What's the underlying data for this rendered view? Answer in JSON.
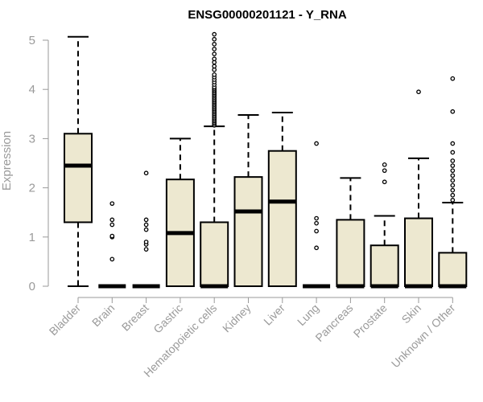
{
  "chart_data": {
    "type": "box",
    "title": "ENSG00000201121 - Y_RNA",
    "ylabel": "Expression",
    "xlabel": "",
    "ylim": [
      0,
      5.15
    ],
    "yticks": [
      0,
      1,
      2,
      3,
      4,
      5
    ],
    "grid": false,
    "box_fill": "#ede8d0",
    "box_stroke": "#000000",
    "axis_color": "#9a9a9a",
    "categories": [
      "Bladder",
      "Brain",
      "Breast",
      "Gastric",
      "Hematopoietic cells",
      "Kidney",
      "Liver",
      "Lung",
      "Pancreas",
      "Prostate",
      "Skin",
      "Unknown / Other"
    ],
    "boxes": [
      {
        "q1": 1.3,
        "median": 2.45,
        "q3": 3.1,
        "whisker_low": 0,
        "whisker_high": 5.07,
        "outliers": []
      },
      {
        "q1": 0,
        "median": 0,
        "q3": 0,
        "whisker_low": 0,
        "whisker_high": 0,
        "outliers": [
          0.55,
          1.0,
          1.02,
          1.25,
          1.35,
          1.68
        ]
      },
      {
        "q1": 0,
        "median": 0,
        "q3": 0,
        "whisker_low": 0,
        "whisker_high": 0,
        "outliers": [
          0.75,
          0.85,
          0.9,
          1.15,
          1.25,
          1.35,
          2.3
        ]
      },
      {
        "q1": 0,
        "median": 1.08,
        "q3": 2.17,
        "whisker_low": 0,
        "whisker_high": 3.0,
        "outliers": []
      },
      {
        "q1": 0,
        "median": 0,
        "q3": 1.3,
        "whisker_low": 0,
        "whisker_high": 3.25,
        "outliers": [
          3.27,
          3.3,
          3.33,
          3.36,
          3.39,
          3.42,
          3.45,
          3.48,
          3.51,
          3.54,
          3.57,
          3.6,
          3.63,
          3.66,
          3.69,
          3.72,
          3.75,
          3.78,
          3.81,
          3.84,
          3.87,
          3.9,
          3.93,
          3.96,
          3.99,
          4.02,
          4.05,
          4.1,
          4.15,
          4.2,
          4.25,
          4.3,
          4.4,
          4.47,
          4.55,
          4.62,
          4.72,
          4.82,
          4.92,
          5.02,
          5.12
        ]
      },
      {
        "q1": 0,
        "median": 1.52,
        "q3": 2.22,
        "whisker_low": 0,
        "whisker_high": 3.48,
        "outliers": []
      },
      {
        "q1": 0,
        "median": 1.72,
        "q3": 2.75,
        "whisker_low": 0,
        "whisker_high": 3.53,
        "outliers": []
      },
      {
        "q1": 0,
        "median": 0,
        "q3": 0,
        "whisker_low": 0,
        "whisker_high": 0,
        "outliers": [
          0.78,
          1.12,
          1.28,
          1.38,
          2.9
        ]
      },
      {
        "q1": 0,
        "median": 0,
        "q3": 1.35,
        "whisker_low": 0,
        "whisker_high": 2.2,
        "outliers": []
      },
      {
        "q1": 0,
        "median": 0,
        "q3": 0.83,
        "whisker_low": 0,
        "whisker_high": 1.43,
        "outliers": [
          2.12,
          2.35,
          2.47
        ]
      },
      {
        "q1": 0,
        "median": 0,
        "q3": 1.38,
        "whisker_low": 0,
        "whisker_high": 2.6,
        "outliers": [
          3.95
        ]
      },
      {
        "q1": 0,
        "median": 0,
        "q3": 0.68,
        "whisker_low": 0,
        "whisker_high": 1.7,
        "outliers": [
          1.75,
          1.85,
          1.95,
          2.05,
          2.15,
          2.25,
          2.35,
          2.45,
          2.55,
          2.72,
          2.9,
          3.55,
          4.22
        ]
      }
    ]
  }
}
